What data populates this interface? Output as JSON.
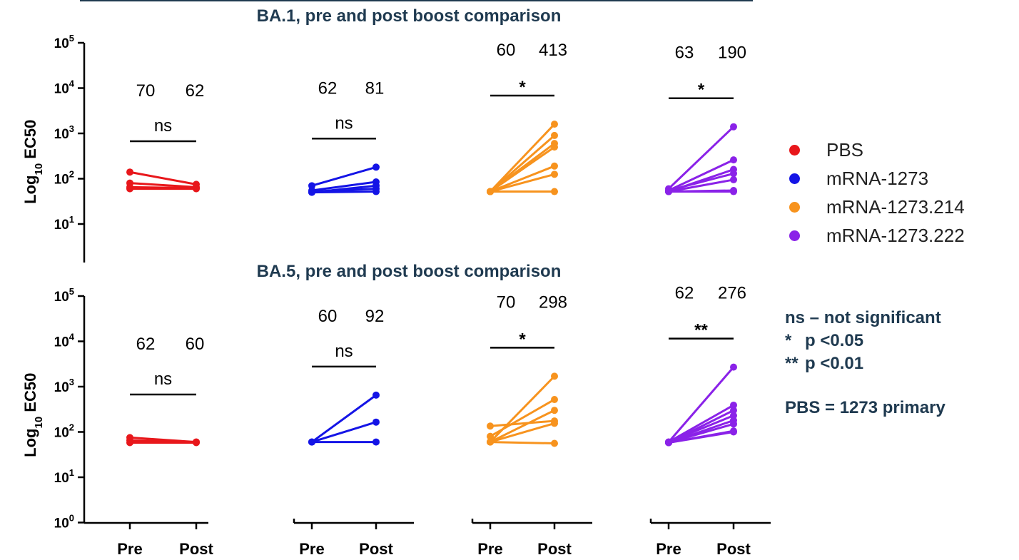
{
  "chart_data": [
    {
      "type": "line",
      "title": "BA.1, pre and post boost comparison",
      "ylabel": "Log10 EC50",
      "yscale": "log",
      "ylim": [
        5,
        100000
      ],
      "yticks": [
        "10^5",
        "10^4",
        "10^3",
        "10^2",
        "10^1"
      ],
      "categories": [
        "Pre",
        "Post"
      ],
      "groups": [
        {
          "name": "PBS",
          "color": "#e8171b",
          "gmt_pre": "70",
          "gmt_post": "62",
          "significance": "ns",
          "pairs": [
            [
              140,
              75
            ],
            [
              80,
              65
            ],
            [
              60,
              60
            ],
            [
              65,
              62
            ]
          ]
        },
        {
          "name": "mRNA-1273",
          "color": "#1414e6",
          "gmt_pre": "62",
          "gmt_post": "81",
          "significance": "ns",
          "pairs": [
            [
              70,
              180
            ],
            [
              55,
              85
            ],
            [
              50,
              70
            ],
            [
              52,
              60
            ],
            [
              50,
              52
            ]
          ]
        },
        {
          "name": "mRNA-1273.214",
          "color": "#f7931e",
          "gmt_pre": "60",
          "gmt_post": "413",
          "significance": "*",
          "pairs": [
            [
              52,
              1600
            ],
            [
              52,
              900
            ],
            [
              52,
              600
            ],
            [
              52,
              500
            ],
            [
              52,
              190
            ],
            [
              52,
              125
            ],
            [
              52,
              52
            ]
          ]
        },
        {
          "name": "mRNA-1273.222",
          "color": "#8a22e8",
          "gmt_pre": "63",
          "gmt_post": "190",
          "significance": "*",
          "pairs": [
            [
              60,
              1400
            ],
            [
              55,
              260
            ],
            [
              52,
              160
            ],
            [
              55,
              130
            ],
            [
              52,
              95
            ],
            [
              52,
              55
            ],
            [
              52,
              52
            ]
          ]
        }
      ]
    },
    {
      "type": "line",
      "title": "BA.5, pre and post boost comparison",
      "ylabel": "Log10 EC50",
      "yscale": "log",
      "ylim": [
        1,
        100000
      ],
      "yticks": [
        "10^5",
        "10^4",
        "10^3",
        "10^2",
        "10^1",
        "10^0"
      ],
      "categories": [
        "Pre",
        "Post"
      ],
      "groups": [
        {
          "name": "PBS",
          "color": "#e8171b",
          "gmt_pre": "62",
          "gmt_post": "60",
          "significance": "ns",
          "pairs": [
            [
              75,
              60
            ],
            [
              65,
              60
            ],
            [
              58,
              58
            ]
          ]
        },
        {
          "name": "mRNA-1273",
          "color": "#1414e6",
          "gmt_pre": "60",
          "gmt_post": "92",
          "significance": "ns",
          "pairs": [
            [
              60,
              650
            ],
            [
              60,
              165
            ],
            [
              60,
              60
            ]
          ]
        },
        {
          "name": "mRNA-1273.214",
          "color": "#f7931e",
          "gmt_pre": "70",
          "gmt_post": "298",
          "significance": "*",
          "pairs": [
            [
              60,
              1700
            ],
            [
              80,
              520
            ],
            [
              60,
              300
            ],
            [
              135,
              175
            ],
            [
              60,
              155
            ],
            [
              60,
              56
            ]
          ]
        },
        {
          "name": "mRNA-1273.222",
          "color": "#8a22e8",
          "gmt_pre": "62",
          "gmt_post": "276",
          "significance": "**",
          "pairs": [
            [
              60,
              2700
            ],
            [
              60,
              390
            ],
            [
              58,
              300
            ],
            [
              60,
              230
            ],
            [
              58,
              180
            ],
            [
              58,
              150
            ],
            [
              58,
              105
            ],
            [
              58,
              100
            ]
          ]
        }
      ]
    }
  ],
  "legend": [
    {
      "label": "PBS",
      "color": "#e8171b"
    },
    {
      "label": "mRNA-1273",
      "color": "#1414e6"
    },
    {
      "label": "mRNA-1273.214",
      "color": "#f7931e"
    },
    {
      "label": "mRNA-1273.222",
      "color": "#8a22e8"
    }
  ],
  "notes": {
    "ns": "ns – not significant",
    "p05_symbol": "*",
    "p05_text": "p <0.05",
    "p01_symbol": "**",
    "p01_text": "p <0.01",
    "primary": "PBS = 1273 primary"
  }
}
